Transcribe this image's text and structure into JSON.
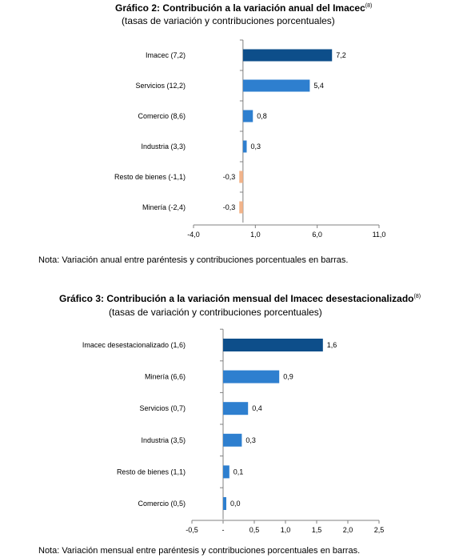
{
  "chart_data": [
    {
      "type": "bar",
      "orientation": "horizontal",
      "title": "Gráfico 2: Contribución a la variación anual del Imacec",
      "title_superscript": "(8)",
      "subtitle": "(tasas de variación y contribuciones porcentuales)",
      "categories": [
        "Imacec (7,2)",
        "Servicios (12,2)",
        "Comercio (8,6)",
        "Industria (3,3)",
        "Resto de bienes (-1,1)",
        "Minería (-2,4)"
      ],
      "values": [
        7.2,
        5.4,
        0.8,
        0.3,
        -0.3,
        -0.3
      ],
      "value_labels": [
        "7,2",
        "5,4",
        "0,8",
        "0,3",
        "-0,3",
        "-0,3"
      ],
      "bar_colors": [
        "#0d4e8a",
        "#2e7fcf",
        "#2e7fcf",
        "#2e7fcf",
        "#f2b48a",
        "#f2b48a"
      ],
      "xlim": [
        -4.0,
        11.0
      ],
      "x_ticks": [
        -4.0,
        1.0,
        6.0,
        11.0
      ],
      "x_tick_labels": [
        "-4,0",
        "1,0",
        "6,0",
        "11,0"
      ],
      "note": "Nota: Variación anual entre paréntesis y contribuciones porcentuales en barras."
    },
    {
      "type": "bar",
      "orientation": "horizontal",
      "title": "Gráfico 3: Contribución a la variación mensual del Imacec desestacionalizado",
      "title_superscript": "(8)",
      "subtitle": "(tasas de variación y contribuciones porcentuales)",
      "categories": [
        "Imacec desestacionalizado (1,6)",
        "Minería (6,6)",
        "Servicios (0,7)",
        "Industria (3,5)",
        "Resto de bienes (1,1)",
        "Comercio (0,5)"
      ],
      "values": [
        1.6,
        0.9,
        0.4,
        0.3,
        0.1,
        0.0
      ],
      "value_labels": [
        "1,6",
        "0,9",
        "0,4",
        "0,3",
        "0,1",
        "0,0"
      ],
      "bar_colors": [
        "#0d4e8a",
        "#2e7fcf",
        "#2e7fcf",
        "#2e7fcf",
        "#2e7fcf",
        "#2e7fcf"
      ],
      "xlim": [
        -0.5,
        2.5
      ],
      "x_ticks": [
        -0.5,
        0.0,
        0.5,
        1.0,
        1.5,
        2.0,
        2.5
      ],
      "x_tick_labels": [
        "-0,5",
        "-",
        "0,5",
        "1,0",
        "1,5",
        "2,0",
        "2,5"
      ],
      "note": "Nota: Variación mensual entre paréntesis y contribuciones porcentuales en barras."
    }
  ]
}
